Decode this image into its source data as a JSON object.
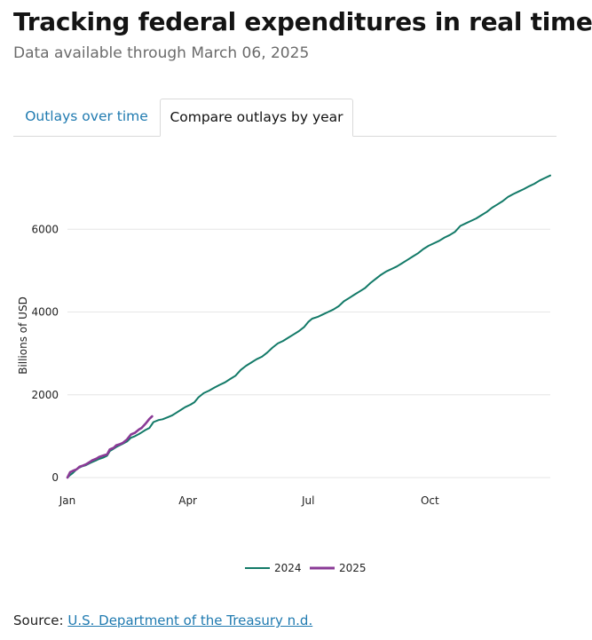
{
  "header": {
    "title": "Tracking federal expenditures in real time",
    "subtitle": "Data available through March 06, 2025"
  },
  "tabs": [
    {
      "label": "Outlays over time",
      "active": false
    },
    {
      "label": "Compare outlays by year",
      "active": true
    }
  ],
  "source": {
    "prefix": "Source: ",
    "link_text": "U.S. Department of the Treasury n.d."
  },
  "colors": {
    "series_2024": "#137a68",
    "series_2025": "#8a3a96",
    "grid": "#e6e6e6",
    "tab_link": "#1f7ab0"
  },
  "chart_data": {
    "type": "line",
    "title": "",
    "xlabel": "",
    "ylabel": "Billions of USD",
    "x_unit": "day of year",
    "xlim": [
      1,
      366
    ],
    "ylim": [
      0,
      7400
    ],
    "yticks": [
      0,
      2000,
      4000,
      6000
    ],
    "xticks": [
      {
        "label": "Jan",
        "day": 1
      },
      {
        "label": "Apr",
        "day": 92
      },
      {
        "label": "Jul",
        "day": 183
      },
      {
        "label": "Oct",
        "day": 275
      }
    ],
    "grid": true,
    "legend_position": "bottom-center",
    "series": [
      {
        "name": "2024",
        "color": "#137a68",
        "x": [
          1,
          3,
          5,
          8,
          10,
          12,
          15,
          18,
          20,
          23,
          25,
          28,
          31,
          33,
          36,
          38,
          41,
          43,
          46,
          49,
          52,
          55,
          57,
          60,
          63,
          66,
          70,
          73,
          77,
          80,
          83,
          87,
          90,
          94,
          97,
          100,
          104,
          108,
          112,
          116,
          120,
          124,
          128,
          132,
          136,
          140,
          144,
          148,
          152,
          156,
          160,
          164,
          168,
          172,
          176,
          180,
          183,
          186,
          190,
          194,
          198,
          202,
          206,
          210,
          214,
          218,
          222,
          226,
          230,
          234,
          238,
          242,
          246,
          250,
          254,
          258,
          262,
          266,
          270,
          274,
          278,
          282,
          286,
          290,
          294,
          298,
          302,
          306,
          310,
          314,
          318,
          322,
          326,
          330,
          334,
          338,
          342,
          346,
          350,
          354,
          358,
          362,
          366
        ],
        "y": [
          0,
          60,
          110,
          200,
          240,
          270,
          300,
          350,
          380,
          420,
          450,
          480,
          530,
          640,
          700,
          740,
          790,
          820,
          870,
          960,
          1000,
          1050,
          1090,
          1150,
          1200,
          1340,
          1390,
          1410,
          1460,
          1500,
          1560,
          1640,
          1700,
          1760,
          1820,
          1940,
          2040,
          2100,
          2170,
          2240,
          2300,
          2380,
          2460,
          2600,
          2700,
          2780,
          2860,
          2920,
          3020,
          3140,
          3240,
          3300,
          3380,
          3460,
          3540,
          3640,
          3760,
          3840,
          3880,
          3940,
          4000,
          4060,
          4140,
          4260,
          4340,
          4420,
          4500,
          4580,
          4700,
          4800,
          4900,
          4980,
          5040,
          5100,
          5180,
          5260,
          5340,
          5420,
          5520,
          5600,
          5660,
          5720,
          5800,
          5860,
          5940,
          6080,
          6140,
          6200,
          6260,
          6340,
          6420,
          6520,
          6600,
          6680,
          6780,
          6850,
          6910,
          6970,
          7040,
          7100,
          7180,
          7240,
          7300
        ]
      },
      {
        "name": "2025",
        "color": "#8a3a96",
        "x": [
          1,
          3,
          5,
          8,
          10,
          12,
          15,
          18,
          20,
          23,
          25,
          28,
          31,
          33,
          36,
          38,
          41,
          43,
          46,
          49,
          52,
          55,
          57,
          60,
          63,
          65
        ],
        "y": [
          0,
          130,
          160,
          200,
          260,
          280,
          320,
          380,
          420,
          460,
          500,
          530,
          560,
          680,
          720,
          780,
          810,
          840,
          920,
          1040,
          1080,
          1160,
          1200,
          1300,
          1420,
          1480
        ]
      }
    ]
  }
}
